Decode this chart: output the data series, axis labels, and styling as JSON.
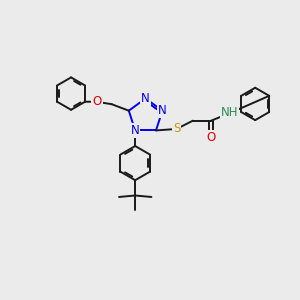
{
  "background_color": "#ebebeb",
  "bond_color": "#1a1a1a",
  "bond_width": 1.4,
  "colors": {
    "N": "#0000EE",
    "O": "#DD0000",
    "S": "#CC9900",
    "NH": "#2E8B57",
    "C": "#1a1a1a"
  },
  "font_size": 8.5,
  "figsize": [
    3.0,
    3.0
  ],
  "dpi": 100
}
